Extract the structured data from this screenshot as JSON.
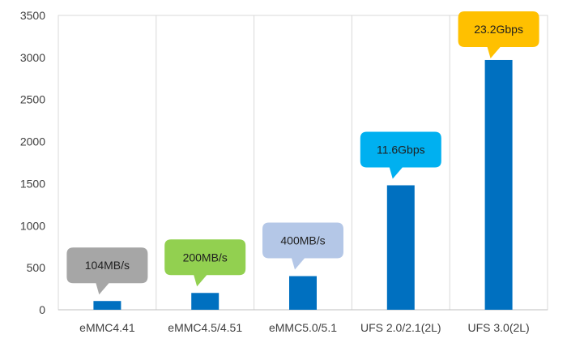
{
  "chart_data": {
    "type": "bar",
    "title": "",
    "xlabel": "",
    "ylabel": "",
    "categories": [
      "eMMC4.41",
      "eMMC4.5/4.51",
      "eMMC5.0/5.1",
      "UFS 2.0/2.1(2L)",
      "UFS 3.0(2L)"
    ],
    "values": [
      104,
      200,
      400,
      1480,
      2970
    ],
    "ylim": [
      0,
      3500
    ],
    "yticks": [
      0,
      500,
      1000,
      1500,
      2000,
      2500,
      3000,
      3500
    ],
    "grid": "vertical category separators",
    "bar_color": "#0070c0",
    "callouts": [
      {
        "category": "eMMC4.41",
        "text": "104MB/s",
        "color": "#a6a6a6"
      },
      {
        "category": "eMMC4.5/4.51",
        "text": "200MB/s",
        "color": "#92d050"
      },
      {
        "category": "eMMC5.0/5.1",
        "text": "400MB/s",
        "color": "#b4c7e7"
      },
      {
        "category": "UFS 2.0/2.1(2L)",
        "text": "11.6Gbps",
        "color": "#00b0f0"
      },
      {
        "category": "UFS 3.0(2L)",
        "text": "23.2Gbps",
        "color": "#ffc000"
      }
    ]
  }
}
